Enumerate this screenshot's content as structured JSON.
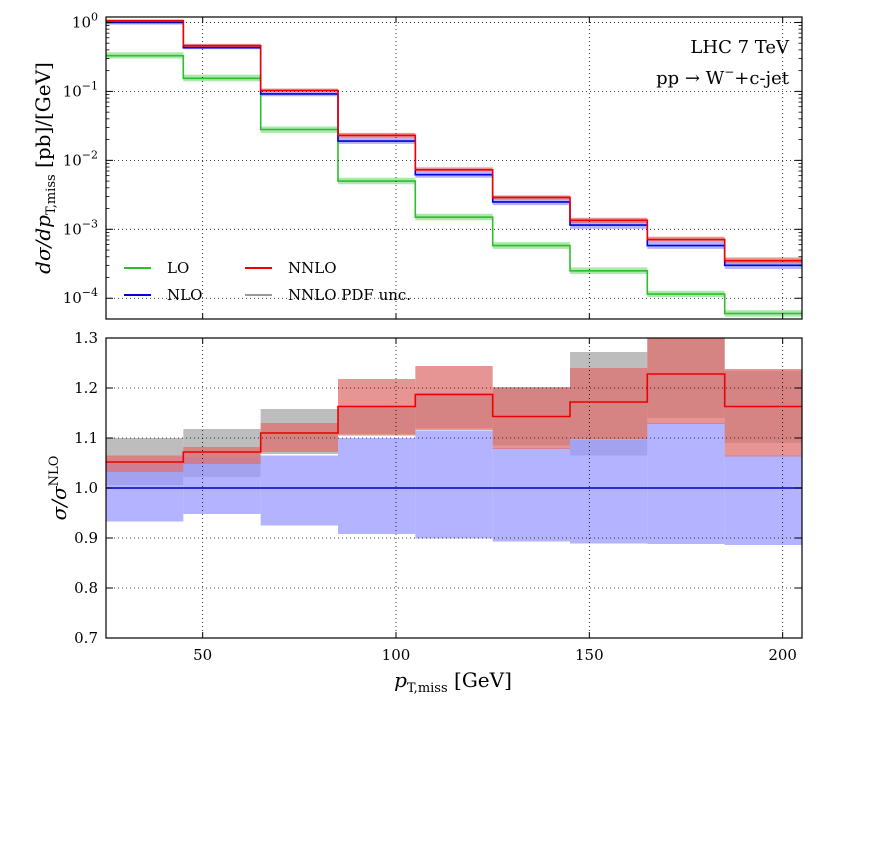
{
  "chart_data": [
    {
      "type": "line",
      "subtype": "step-histogram",
      "y_scale": "log",
      "title": "",
      "xlabel": "",
      "ylabel": "dσ/dp",
      "ylabel_sub": "T,miss",
      "ylabel_suffix": " [pb]/[GeV]",
      "xlim": [
        25,
        205
      ],
      "ylim": [
        5e-05,
        1.2
      ],
      "grid": true,
      "bin_edges": [
        25,
        45,
        65,
        85,
        105,
        125,
        145,
        165,
        185,
        205
      ],
      "y_ticks": [
        {
          "value": 1,
          "base": "10",
          "exp": "0"
        },
        {
          "value": 0.1,
          "base": "10",
          "exp": "−1"
        },
        {
          "value": 0.01,
          "base": "10",
          "exp": "−2"
        },
        {
          "value": 0.001,
          "base": "10",
          "exp": "−3"
        },
        {
          "value": 0.0001,
          "base": "10",
          "exp": "−4"
        }
      ],
      "annotations": {
        "energy": "LHC 7 TeV",
        "process_prefix": "pp → W",
        "process_sup": "−",
        "process_suffix": "+c-jet"
      },
      "legend_position": "lower-left",
      "series": [
        {
          "name": "LO",
          "color": "#2bbf2b",
          "band_color": "#8fe08f",
          "values": [
            0.33,
            0.155,
            0.028,
            0.005,
            0.0015,
            0.00058,
            0.00025,
            0.000115,
            6e-05
          ],
          "band_low": [
            0.3,
            0.14,
            0.025,
            0.0045,
            0.00135,
            0.00052,
            0.000225,
            0.000104,
            5.4e-05
          ],
          "band_high": [
            0.37,
            0.175,
            0.031,
            0.0056,
            0.00168,
            0.00065,
            0.00028,
            0.000128,
            6.7e-05
          ]
        },
        {
          "name": "NLO",
          "color": "#0000dd",
          "band_color": "#9999ff",
          "values": [
            1.0,
            0.43,
            0.092,
            0.019,
            0.0062,
            0.0025,
            0.00115,
            0.00058,
            0.0003
          ],
          "band_low": [
            0.93,
            0.41,
            0.085,
            0.0173,
            0.0056,
            0.00224,
            0.00102,
            0.00052,
            0.000266
          ],
          "band_high": [
            1.05,
            0.46,
            0.098,
            0.021,
            0.0069,
            0.0028,
            0.0013,
            0.00066,
            0.00034
          ]
        },
        {
          "name": "NNLO",
          "color": "#ee0000",
          "band_color": "#dd7070",
          "values": [
            1.06,
            0.46,
            0.103,
            0.023,
            0.0073,
            0.0029,
            0.00135,
            0.00071,
            0.00035
          ],
          "band_low": [
            1.02,
            0.44,
            0.098,
            0.021,
            0.0069,
            0.0027,
            0.00123,
            0.00066,
            0.00032
          ],
          "band_high": [
            1.1,
            0.49,
            0.11,
            0.025,
            0.0079,
            0.0031,
            0.00147,
            0.00078,
            0.00039
          ]
        },
        {
          "name": "NNLO PDF unc.",
          "color": "#999999",
          "band_color": "#999999",
          "values": null
        }
      ]
    },
    {
      "type": "line",
      "subtype": "step-histogram",
      "y_scale": "linear",
      "title": "",
      "xlabel": "p",
      "xlabel_sub": "T,miss",
      "xlabel_suffix": " [GeV]",
      "ylabel": "σ/σ",
      "ylabel_sup": "NLO",
      "xlim": [
        25,
        205
      ],
      "ylim": [
        0.7,
        1.3
      ],
      "grid": true,
      "bin_edges": [
        25,
        45,
        65,
        85,
        105,
        125,
        145,
        165,
        185,
        205
      ],
      "x_ticks": [
        "50",
        "100",
        "150",
        "200"
      ],
      "x_tick_values": [
        50,
        100,
        150,
        200
      ],
      "y_ticks": [
        "0.7",
        "0.8",
        "0.9",
        "1.0",
        "1.1",
        "1.2",
        "1.3"
      ],
      "y_tick_values": [
        0.7,
        0.8,
        0.9,
        1.0,
        1.1,
        1.2,
        1.3
      ],
      "series": [
        {
          "name": "NLO",
          "color": "#0000dd",
          "band_color": "#9999ff",
          "values": [
            1.0,
            1.0,
            1.0,
            1.0,
            1.0,
            1.0,
            1.0,
            1.0,
            1.0
          ],
          "band_low": [
            0.933,
            0.948,
            0.925,
            0.908,
            0.899,
            0.893,
            0.889,
            0.888,
            0.886
          ],
          "band_high": [
            1.052,
            1.062,
            1.065,
            1.1,
            1.115,
            1.08,
            1.097,
            1.13,
            1.065
          ]
        },
        {
          "name": "NNLO",
          "color": "#ee0000",
          "band_color": "#dd7070",
          "values": [
            1.052,
            1.072,
            1.11,
            1.163,
            1.187,
            1.143,
            1.172,
            1.228,
            1.163
          ],
          "band_low": [
            1.032,
            1.048,
            1.072,
            1.105,
            1.116,
            1.078,
            1.098,
            1.128,
            1.063
          ],
          "band_high": [
            1.065,
            1.082,
            1.13,
            1.218,
            1.244,
            1.202,
            1.24,
            1.305,
            1.238
          ]
        },
        {
          "name": "NNLO PDF unc.",
          "color": "#999999",
          "band_color": "#999999",
          "band_low": [
            1.006,
            1.022,
            1.068,
            1.108,
            1.12,
            1.085,
            1.065,
            1.14,
            1.09
          ],
          "band_high": [
            1.1,
            1.118,
            1.158,
            1.165,
            1.19,
            1.2,
            1.272,
            1.3,
            1.234
          ]
        }
      ]
    }
  ]
}
